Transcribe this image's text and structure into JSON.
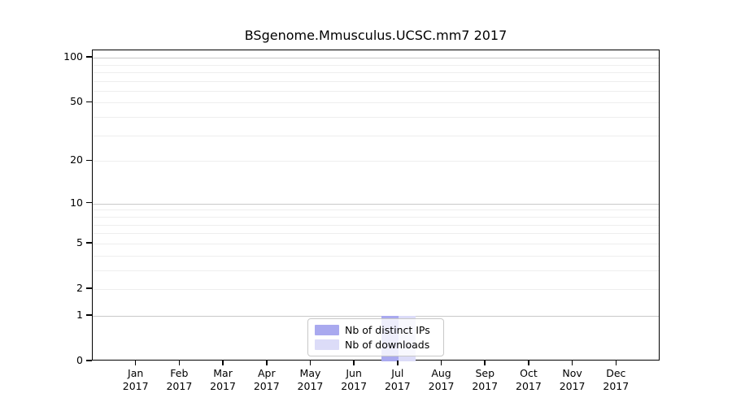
{
  "chart_data": {
    "type": "bar",
    "title": "BSgenome.Mmusculus.UCSC.mm7 2017",
    "categories": [
      "Jan",
      "Feb",
      "Mar",
      "Apr",
      "May",
      "Jun",
      "Jul",
      "Aug",
      "Sep",
      "Oct",
      "Nov",
      "Dec"
    ],
    "category_year": "2017",
    "series": [
      {
        "name": "Nb of distinct IPs",
        "color": "#a9a9ef",
        "values": [
          0,
          0,
          0,
          0,
          0,
          0,
          1,
          0,
          0,
          0,
          0,
          0
        ]
      },
      {
        "name": "Nb of downloads",
        "color": "#dcdcf8",
        "values": [
          0,
          0,
          0,
          0,
          0,
          0,
          1,
          0,
          0,
          0,
          0,
          0
        ]
      }
    ],
    "yscale": "log1p",
    "ylim": [
      0,
      112
    ],
    "yticks": [
      0,
      1,
      2,
      5,
      10,
      20,
      50,
      100
    ],
    "minor_gridlines": [
      2,
      3,
      4,
      6,
      7,
      8,
      9,
      5,
      20,
      30,
      40,
      50,
      60,
      70,
      80,
      90
    ],
    "major_gridlines": [
      1,
      10,
      100
    ],
    "grid": "horizontal",
    "legend_position": "lower center",
    "colors": {
      "axis": "#000000",
      "grid_major": "#c9c9c9",
      "grid_minor": "#eeeeee",
      "text": "#000000"
    }
  }
}
